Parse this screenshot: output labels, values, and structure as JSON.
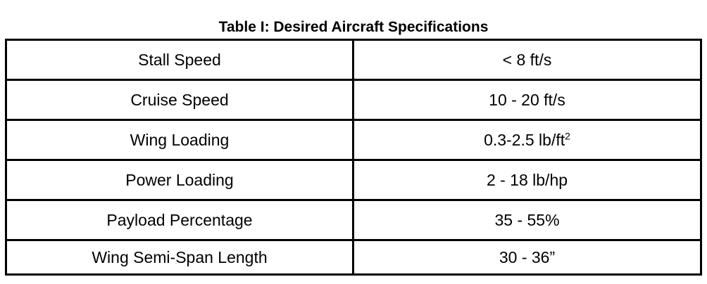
{
  "table": {
    "caption": "Table I: Desired Aircraft Specifications",
    "rows": [
      {
        "parameter": "Stall Speed",
        "value": "< 8 ft/s"
      },
      {
        "parameter": "Cruise Speed",
        "value": "10 - 20 ft/s"
      },
      {
        "parameter": "Wing Loading",
        "value": "0.3-2.5 lb/ft",
        "value_superscript": "2"
      },
      {
        "parameter": "Power Loading",
        "value": "2 - 18 lb/hp"
      },
      {
        "parameter": "Payload Percentage",
        "value": "35 - 55%"
      },
      {
        "parameter": "Wing Semi-Span Length",
        "value": "30 - 36”"
      }
    ]
  }
}
